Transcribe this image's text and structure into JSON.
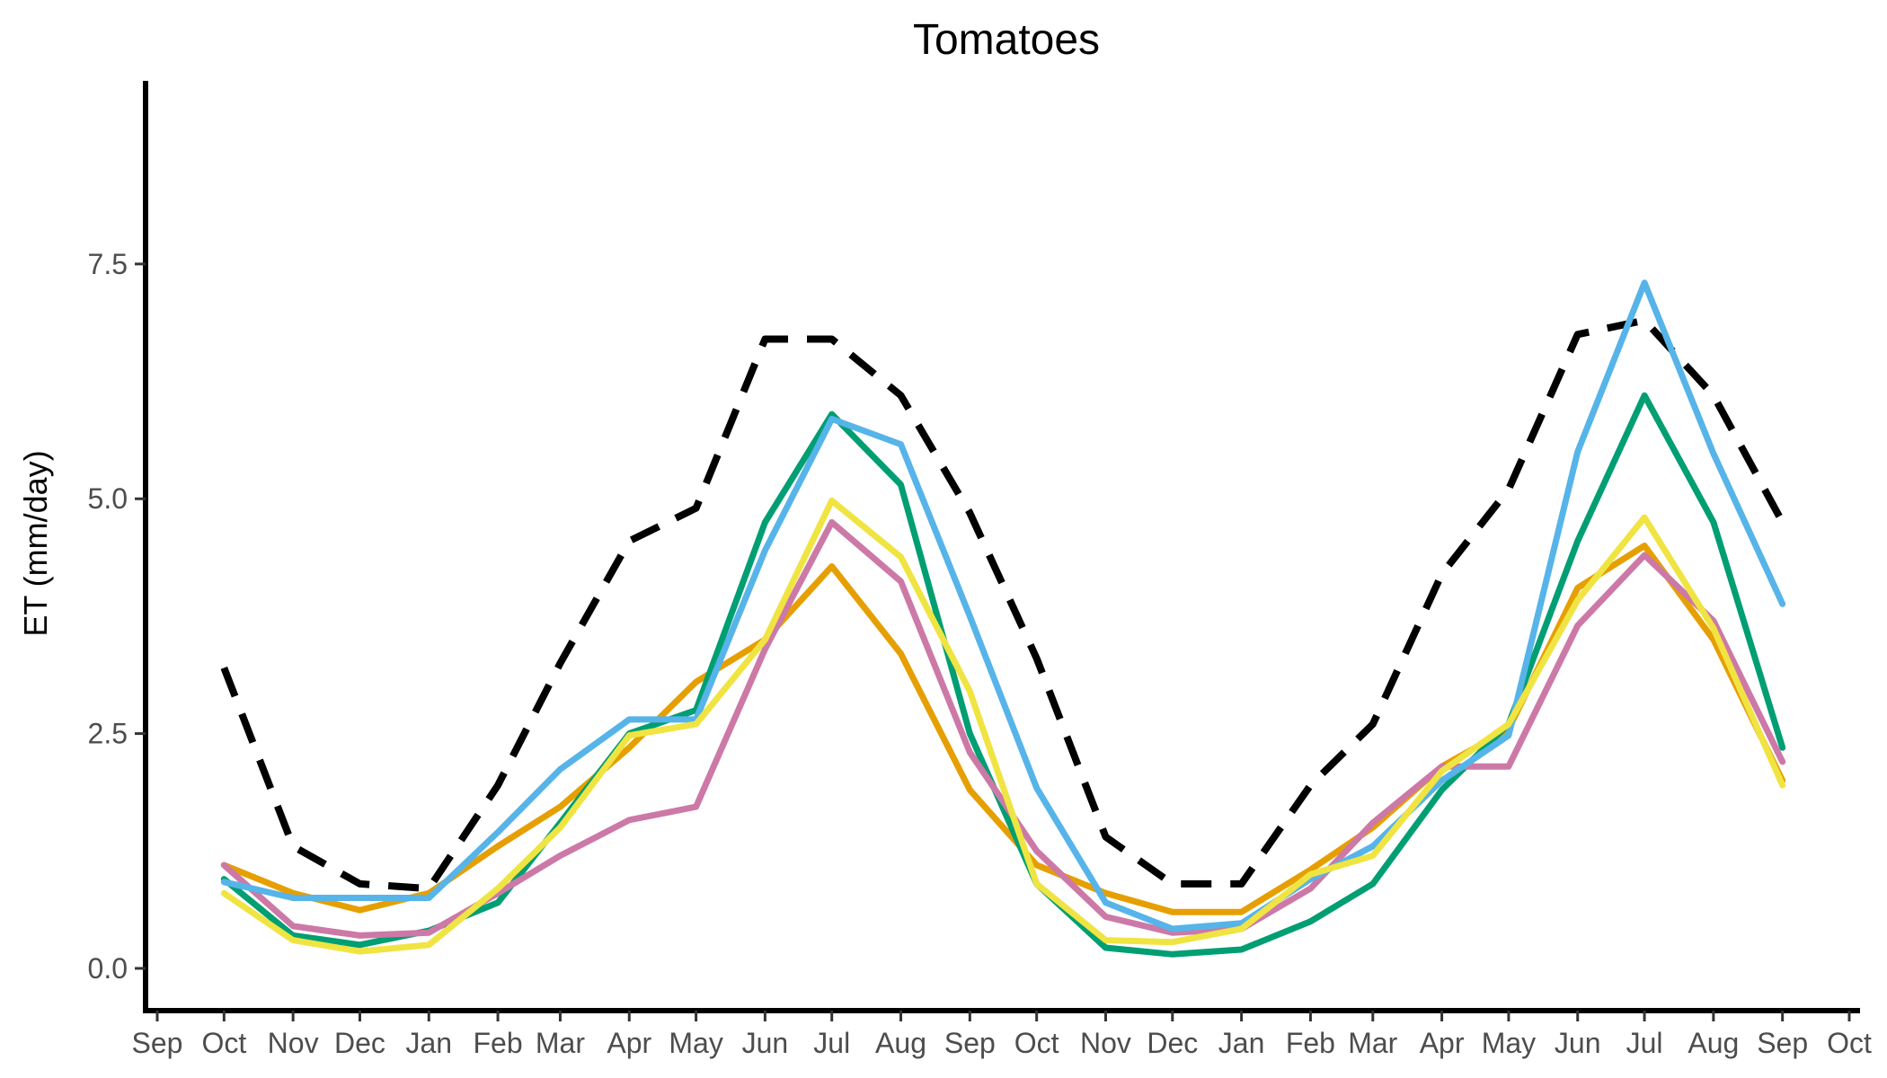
{
  "chart_data": {
    "type": "line",
    "title": "Tomatoes",
    "xlabel": "",
    "ylabel": "ET (mm/day)",
    "ylim": [
      -0.45,
      9.45
    ],
    "yticks": [
      0.0,
      2.5,
      5.0,
      7.5
    ],
    "ytick_labels": [
      "0.0",
      "2.5",
      "5.0",
      "7.5"
    ],
    "x_tick_labels": [
      "Sep",
      "Oct",
      "Nov",
      "Dec",
      "Jan",
      "Feb",
      "Mar",
      "Apr",
      "May",
      "Jun",
      "Jul",
      "Aug",
      "Sep",
      "Oct",
      "Nov",
      "Dec",
      "Jan",
      "Feb",
      "Mar",
      "Apr",
      "May",
      "Jun",
      "Jul",
      "Aug",
      "Sep",
      "Oct"
    ],
    "x_tick_dates": [
      "2000-09-01",
      "2000-10-01",
      "2000-11-01",
      "2000-12-01",
      "2001-01-01",
      "2001-02-01",
      "2001-03-01",
      "2001-04-01",
      "2001-05-01",
      "2001-06-01",
      "2001-07-01",
      "2001-08-01",
      "2001-09-01",
      "2001-10-01",
      "2001-11-01",
      "2001-12-01",
      "2002-01-01",
      "2002-02-01",
      "2002-03-01",
      "2002-04-01",
      "2002-05-01",
      "2002-06-01",
      "2002-07-01",
      "2002-08-01",
      "2002-09-01",
      "2002-10-01"
    ],
    "x_dates": [
      "2000-10-01",
      "2000-11-01",
      "2000-12-01",
      "2001-01-01",
      "2001-02-01",
      "2001-03-01",
      "2001-04-01",
      "2001-05-01",
      "2001-06-01",
      "2001-07-01",
      "2001-08-01",
      "2001-09-01",
      "2001-10-01",
      "2001-11-01",
      "2001-12-01",
      "2002-01-01",
      "2002-02-01",
      "2002-03-01",
      "2002-04-01",
      "2002-05-01",
      "2002-06-01",
      "2002-07-01",
      "2002-08-01",
      "2002-09-01"
    ],
    "grid": false,
    "legend": "none",
    "series": [
      {
        "color": "#000000",
        "dashed": true,
        "values": [
          3.2,
          1.3,
          0.9,
          0.85,
          1.95,
          3.25,
          4.55,
          4.9,
          6.7,
          6.7,
          6.1,
          4.85,
          3.3,
          1.4,
          0.9,
          0.9,
          1.95,
          2.6,
          4.2,
          5.1,
          6.75,
          6.9,
          6.1,
          4.75
        ]
      },
      {
        "color": "#E69F00",
        "values": [
          1.1,
          0.8,
          0.62,
          0.8,
          1.3,
          1.72,
          2.35,
          3.05,
          3.5,
          4.28,
          3.35,
          1.9,
          1.1,
          0.8,
          0.6,
          0.6,
          1.05,
          1.5,
          2.15,
          2.55,
          4.05,
          4.5,
          3.5,
          2.0
        ]
      },
      {
        "color": "#009E73",
        "values": [
          0.95,
          0.35,
          0.25,
          0.4,
          0.7,
          1.55,
          2.5,
          2.75,
          4.75,
          5.9,
          5.15,
          2.5,
          0.9,
          0.22,
          0.15,
          0.2,
          0.5,
          0.9,
          1.9,
          2.6,
          4.55,
          6.1,
          4.75,
          2.35
        ]
      },
      {
        "color": "#CC79A7",
        "values": [
          1.1,
          0.45,
          0.35,
          0.38,
          0.8,
          1.2,
          1.58,
          1.72,
          3.4,
          4.75,
          4.12,
          2.3,
          1.25,
          0.55,
          0.38,
          0.42,
          0.85,
          1.55,
          2.15,
          2.15,
          3.65,
          4.4,
          3.7,
          2.2
        ]
      },
      {
        "color": "#56B4E9",
        "values": [
          0.92,
          0.75,
          0.75,
          0.75,
          1.45,
          2.12,
          2.65,
          2.65,
          4.45,
          5.85,
          5.58,
          3.75,
          1.92,
          0.7,
          0.42,
          0.48,
          0.95,
          1.3,
          2.0,
          2.48,
          5.5,
          7.3,
          5.48,
          3.88
        ]
      },
      {
        "color": "#F0E442",
        "values": [
          0.8,
          0.3,
          0.18,
          0.25,
          0.85,
          1.5,
          2.48,
          2.6,
          3.5,
          4.98,
          4.38,
          2.95,
          0.9,
          0.3,
          0.28,
          0.42,
          1.0,
          1.2,
          2.1,
          2.6,
          3.92,
          4.8,
          3.62,
          1.95
        ]
      }
    ]
  }
}
